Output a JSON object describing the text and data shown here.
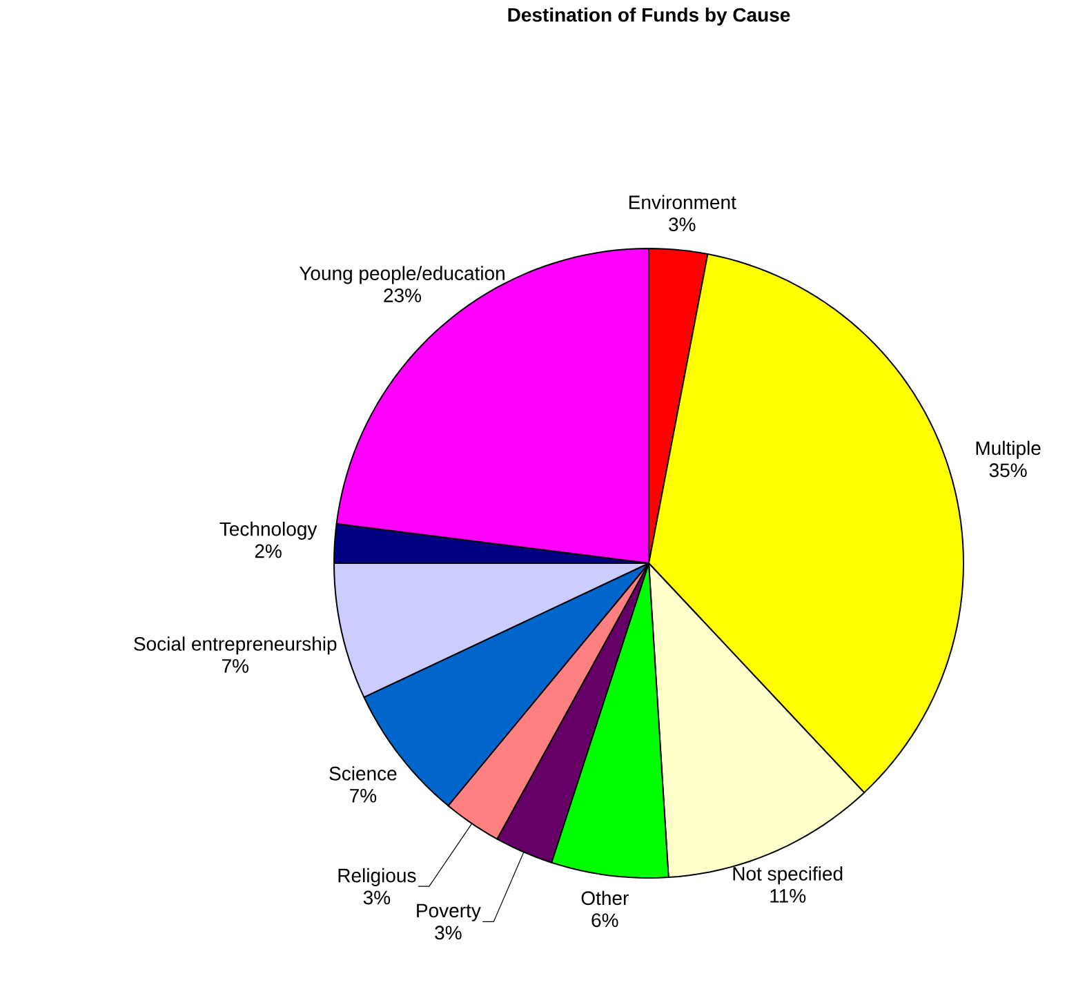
{
  "chart_data": {
    "type": "pie",
    "title": "Destination of Funds by Cause",
    "categories": [
      "Environment",
      "Multiple",
      "Not specified",
      "Other",
      "Poverty",
      "Religious",
      "Science",
      "Social entrepreneurship",
      "Technology",
      "Young people/education"
    ],
    "values": [
      3,
      35,
      11,
      6,
      3,
      3,
      7,
      7,
      2,
      23
    ],
    "value_labels": [
      "3%",
      "35%",
      "11%",
      "6%",
      "3%",
      "3%",
      "7%",
      "7%",
      "2%",
      "23%"
    ],
    "colors": [
      "#ff0000",
      "#ffff00",
      "#ffffcc",
      "#00ff00",
      "#660066",
      "#ff8080",
      "#0066cc",
      "#ccccff",
      "#000080",
      "#ff00ff"
    ]
  }
}
